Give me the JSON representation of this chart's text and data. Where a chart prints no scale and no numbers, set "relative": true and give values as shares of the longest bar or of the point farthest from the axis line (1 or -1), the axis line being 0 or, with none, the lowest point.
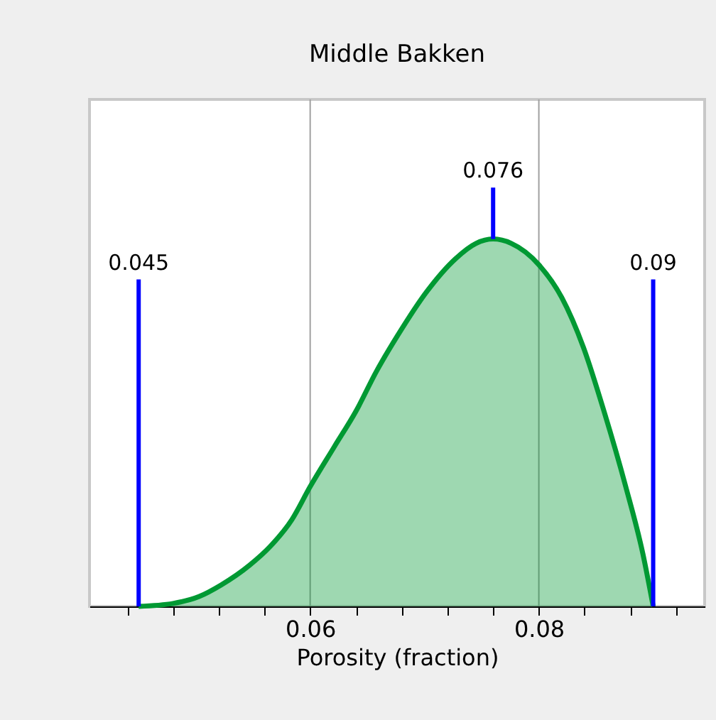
{
  "chart_data": {
    "type": "area",
    "title": "Middle Bakken",
    "xlabel": "Porosity (fraction)",
    "relative": true,
    "x": [
      0.045,
      0.048,
      0.0503,
      0.0522,
      0.0547,
      0.0565,
      0.0584,
      0.06,
      0.0621,
      0.064,
      0.0658,
      0.0677,
      0.0702,
      0.0727,
      0.0745,
      0.076,
      0.0776,
      0.08,
      0.082,
      0.0839,
      0.0857,
      0.0876,
      0.0891,
      0.09
    ],
    "series": [
      {
        "color": "#009933",
        "values": [
          0,
          0.008,
          0.027,
          0.058,
          0.112,
          0.163,
          0.236,
          0.326,
          0.434,
          0.531,
          0.64,
          0.74,
          0.857,
          0.946,
          0.988,
          1,
          0.988,
          0.93,
          0.841,
          0.705,
          0.531,
          0.326,
          0.143,
          0
        ]
      }
    ],
    "xlim": [
      0.0407,
      0.0945
    ],
    "xticks": [
      {
        "value": 0.044,
        "label": null
      },
      {
        "value": 0.048,
        "label": null
      },
      {
        "value": 0.052,
        "label": null
      },
      {
        "value": 0.056,
        "label": null
      },
      {
        "value": 0.06,
        "label": "0.06"
      },
      {
        "value": 0.064,
        "label": null
      },
      {
        "value": 0.068,
        "label": null
      },
      {
        "value": 0.072,
        "label": null
      },
      {
        "value": 0.076,
        "label": null
      },
      {
        "value": 0.08,
        "label": "0.08"
      },
      {
        "value": 0.084,
        "label": null
      },
      {
        "value": 0.088,
        "label": null
      },
      {
        "value": 0.092,
        "label": null
      }
    ],
    "grid": "x",
    "ref_lines": [
      {
        "axis": "x",
        "value": 0.045,
        "label": "0.045",
        "color": "#0000ff"
      },
      {
        "axis": "x",
        "value": 0.076,
        "label": "0.076",
        "color": "#0000ff"
      },
      {
        "axis": "x",
        "value": 0.09,
        "label": "0.09",
        "color": "#0000ff"
      }
    ]
  }
}
